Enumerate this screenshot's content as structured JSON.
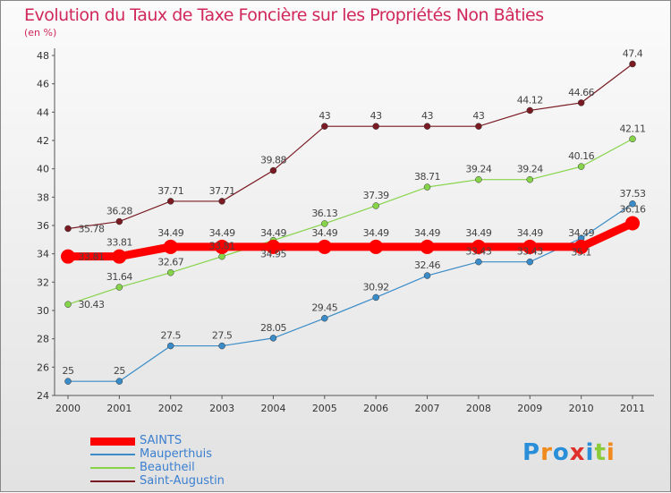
{
  "chart_data": {
    "type": "line",
    "title": "Evolution du Taux de Taxe Foncière sur les Propriétés Non Bâties",
    "subtitle": "(en %)",
    "xlabel": "",
    "ylabel": "",
    "x": [
      "2000",
      "2001",
      "2002",
      "2003",
      "2004",
      "2005",
      "2006",
      "2007",
      "2008",
      "2009",
      "2010",
      "2011"
    ],
    "ylim": [
      24,
      48
    ],
    "yticks": [
      "24",
      "26",
      "28",
      "30",
      "32",
      "34",
      "36",
      "38",
      "40",
      "42",
      "44",
      "46",
      "48"
    ],
    "legend_position": "bottom-left",
    "series": [
      {
        "name": "SAINTS",
        "color": "#ff0000",
        "values": [
          33.81,
          33.81,
          34.49,
          34.49,
          34.49,
          34.49,
          34.49,
          34.49,
          34.49,
          34.49,
          34.49,
          36.16
        ],
        "labels": [
          "33.81",
          "33.81",
          "34.49",
          "34.49",
          "34.49",
          "34.49",
          "34.49",
          "34.49",
          "34.49",
          "34.49",
          "34.49",
          "36.16"
        ]
      },
      {
        "name": "Mauperthuis",
        "color": "#3a8cc8",
        "values": [
          25,
          25,
          27.5,
          27.5,
          28.05,
          29.45,
          30.92,
          32.46,
          33.43,
          33.43,
          35.1,
          37.53
        ],
        "labels": [
          "25",
          "25",
          "27.5",
          "27.5",
          "28.05",
          "29.45",
          "30.92",
          "32.46",
          "33.43",
          "33.43",
          "35.1",
          "37.53"
        ]
      },
      {
        "name": "Beautheil",
        "color": "#86d44a",
        "values": [
          30.43,
          31.64,
          32.67,
          33.81,
          34.95,
          36.13,
          37.39,
          38.71,
          39.24,
          39.24,
          40.16,
          42.11
        ],
        "labels": [
          "30.43",
          "31.64",
          "32.67",
          "33.81",
          "34.95",
          "36.13",
          "37.39",
          "38.71",
          "39.24",
          "39.24",
          "40.16",
          "42.11"
        ]
      },
      {
        "name": "Saint-Augustin",
        "color": "#7a1a22",
        "values": [
          35.78,
          36.28,
          37.71,
          37.71,
          39.88,
          43,
          43,
          43,
          43,
          44.12,
          44.66,
          47.4
        ],
        "labels": [
          "35.78",
          "36.28",
          "37.71",
          "37.71",
          "39.88",
          "43",
          "43",
          "43",
          "43",
          "44.12",
          "44.66",
          "47.4"
        ]
      }
    ]
  },
  "logo": {
    "text": "Proxiti"
  }
}
